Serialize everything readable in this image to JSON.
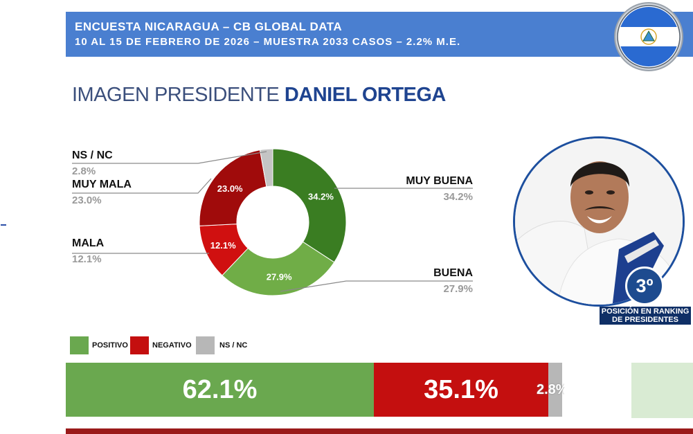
{
  "header": {
    "line1": "ENCUESTA NICARAGUA – CB GLOBAL DATA",
    "line2": "10 AL 15 DE FEBRERO DE 2026 – MUESTRA 2033 CASOS – 2.2% M.E."
  },
  "title": {
    "prefix": "IMAGEN PRESIDENTE",
    "name": "DANIEL ORTEGA"
  },
  "chart_data": [
    {
      "type": "pie",
      "donut": true,
      "categories": [
        "MUY BUENA",
        "BUENA",
        "MALA",
        "MUY MALA",
        "NS / NC"
      ],
      "values": [
        34.2,
        27.9,
        12.1,
        23.0,
        2.8
      ],
      "value_labels": [
        "34.2%",
        "27.9%",
        "12.1%",
        "23.0%",
        "2.8%"
      ],
      "colors": [
        "#3a7d22",
        "#70ad47",
        "#d01010",
        "#a00b0b",
        "#c4c4c4"
      ]
    },
    {
      "type": "bar",
      "stacked": true,
      "orientation": "horizontal",
      "categories": [
        "POSITIVO",
        "NEGATIVO",
        "NS / NC"
      ],
      "values": [
        62.1,
        35.1,
        2.8
      ],
      "value_labels": [
        "62.1%",
        "35.1%",
        "2.8%"
      ],
      "colors": [
        "#6aa84f",
        "#c40f0f",
        "#b7b7b7"
      ]
    }
  ],
  "legend": [
    {
      "label": "POSITIVO",
      "color": "#6aa84f"
    },
    {
      "label": "NEGATIVO",
      "color": "#c40f0f"
    },
    {
      "label": "NS / NC",
      "color": "#b7b7b7"
    }
  ],
  "ranking": {
    "position": "3º",
    "caption_line1": "POSICIÓN EN RANKING",
    "caption_line2": "DE PRESIDENTES"
  },
  "colors": {
    "header_bg": "#4a7fd0",
    "title_accent": "#1f4490",
    "rank_bg": "#1d4b8f"
  }
}
